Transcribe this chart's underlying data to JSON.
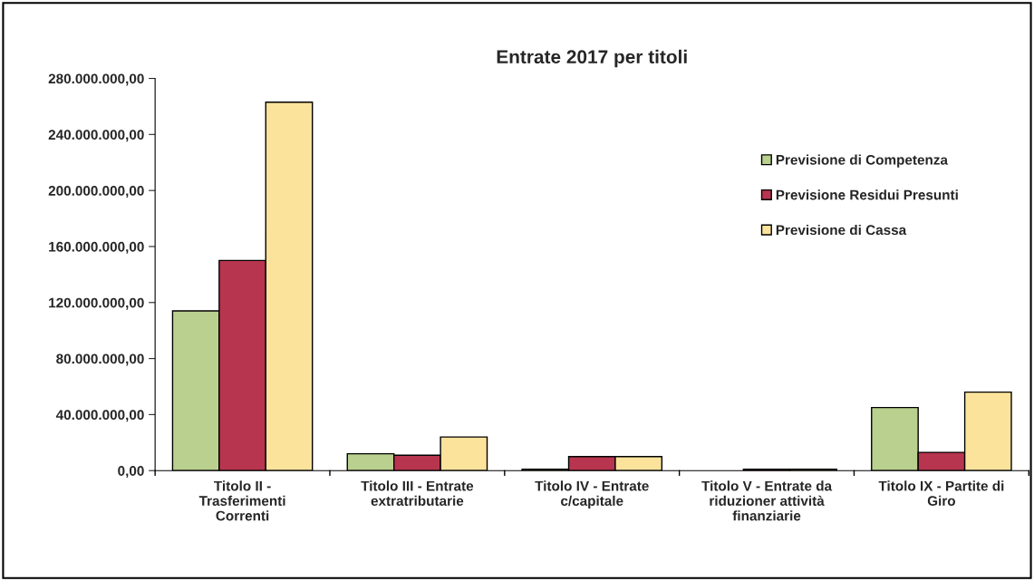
{
  "chart_data": {
    "type": "bar",
    "title": "Entrate 2017 per titoli",
    "categories": [
      "Titolo II -\nTrasferimenti\nCorrenti",
      "Titolo III - Entrate\nextratributarie",
      "Titolo IV - Entrate\nc/capitale",
      "Titolo V - Entrate da\nriduzioner attività\nfinanziarie",
      "Titolo IX - Partite di\nGiro"
    ],
    "series": [
      {
        "name": "Previsione di Competenza",
        "color": "#b9d08f",
        "values": [
          114000000,
          12000000,
          1000000,
          null,
          45000000
        ]
      },
      {
        "name": "Previsione Residui Presunti",
        "color": "#b8354f",
        "values": [
          150000000,
          11000000,
          10000000,
          1000000,
          13000000
        ]
      },
      {
        "name": "Previsione di Cassa",
        "color": "#fbe39c",
        "values": [
          263000000,
          24000000,
          10000000,
          1000000,
          56000000
        ]
      }
    ],
    "ylim": [
      0,
      280000000
    ],
    "yticks": [
      {
        "value": 0,
        "label": "0,00"
      },
      {
        "value": 40000000,
        "label": "40.000.000,00"
      },
      {
        "value": 80000000,
        "label": "80.000.000,00"
      },
      {
        "value": 120000000,
        "label": "120.000.000,00"
      },
      {
        "value": 160000000,
        "label": "160.000.000,00"
      },
      {
        "value": 200000000,
        "label": "200.000.000,00"
      },
      {
        "value": 240000000,
        "label": "240.000.000,00"
      },
      {
        "value": 280000000,
        "label": "280.000.000,00"
      }
    ],
    "grid": false,
    "legend": "right"
  }
}
